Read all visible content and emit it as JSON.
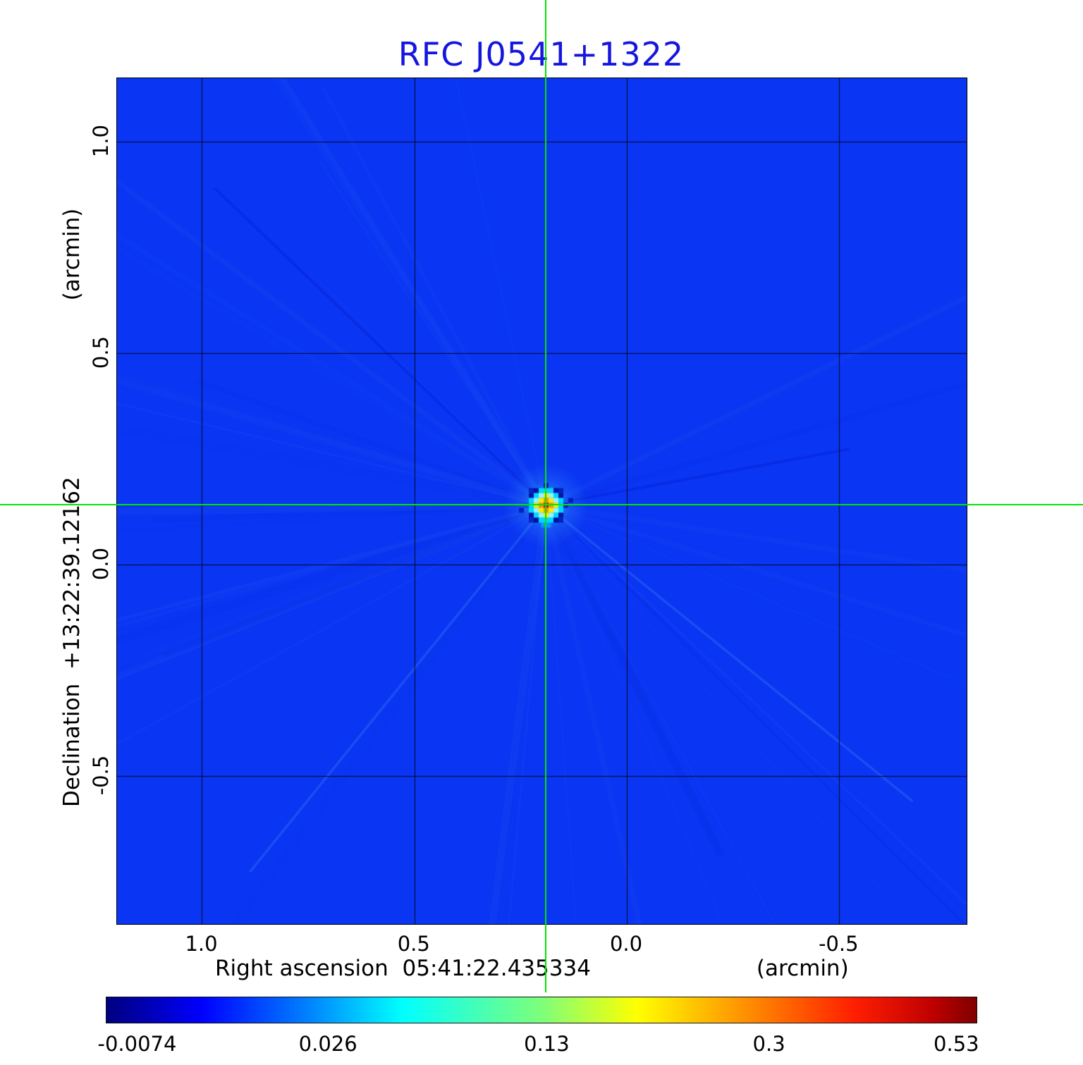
{
  "title": "RFC J0541+1322",
  "colors": {
    "title": "#1515e0",
    "crosshair": "#00e600",
    "map_background": "#0a35f2",
    "grid": "rgba(0,0,0,0.85)"
  },
  "axes": {
    "x": {
      "label": "Right ascension",
      "value": "05:41:22.435334",
      "unit": "(arcmin)",
      "ticks": [
        "1.0",
        "0.5",
        "0.0",
        "-0.5"
      ]
    },
    "y": {
      "label": "Declination",
      "value": "+13:22:39.12162",
      "unit": "(arcmin)",
      "ticks": [
        "1.0",
        "0.5",
        "0.0",
        "-0.5"
      ]
    }
  },
  "colorbar": {
    "ticks": [
      "-0.0074",
      "0.026",
      "0.13",
      "0.3",
      "0.53"
    ],
    "tick_positions_pct": [
      3.6,
      25.5,
      50.6,
      76.1,
      97.6
    ],
    "gradient": [
      [
        "#00007f",
        0
      ],
      [
        "#0000ff",
        11
      ],
      [
        "#0080ff",
        23
      ],
      [
        "#00ffff",
        34
      ],
      [
        "#7dff7a",
        50
      ],
      [
        "#ffff00",
        61
      ],
      [
        "#ff9400",
        73
      ],
      [
        "#ff1e00",
        86
      ],
      [
        "#bf0000",
        95
      ],
      [
        "#7f0000",
        100
      ]
    ]
  },
  "chart_data": {
    "type": "heatmap",
    "title": "RFC J0541+1322",
    "xlabel": "Right ascension 05:41:22.435334 (arcmin)",
    "ylabel": "Declination +13:22:39.12162 (arcmin)",
    "x_ticks": [
      1.0,
      0.5,
      0.0,
      -0.5
    ],
    "y_ticks": [
      1.0,
      0.5,
      0.0,
      -0.5
    ],
    "x_range": [
      1.2,
      -0.8
    ],
    "y_range": [
      1.15,
      -0.85
    ],
    "grid": true,
    "colormap": "jet",
    "colorbar_ticks": [
      -0.0074,
      0.026,
      0.13,
      0.3,
      0.53
    ],
    "value_min": -0.0074,
    "value_max": 0.53,
    "background_value": 0.0,
    "peak": {
      "x_arcmin": 0.19,
      "y_arcmin": 0.14,
      "value": 0.53
    },
    "crosshair": {
      "x_arcmin": 0.19,
      "y_arcmin": 0.14
    }
  }
}
